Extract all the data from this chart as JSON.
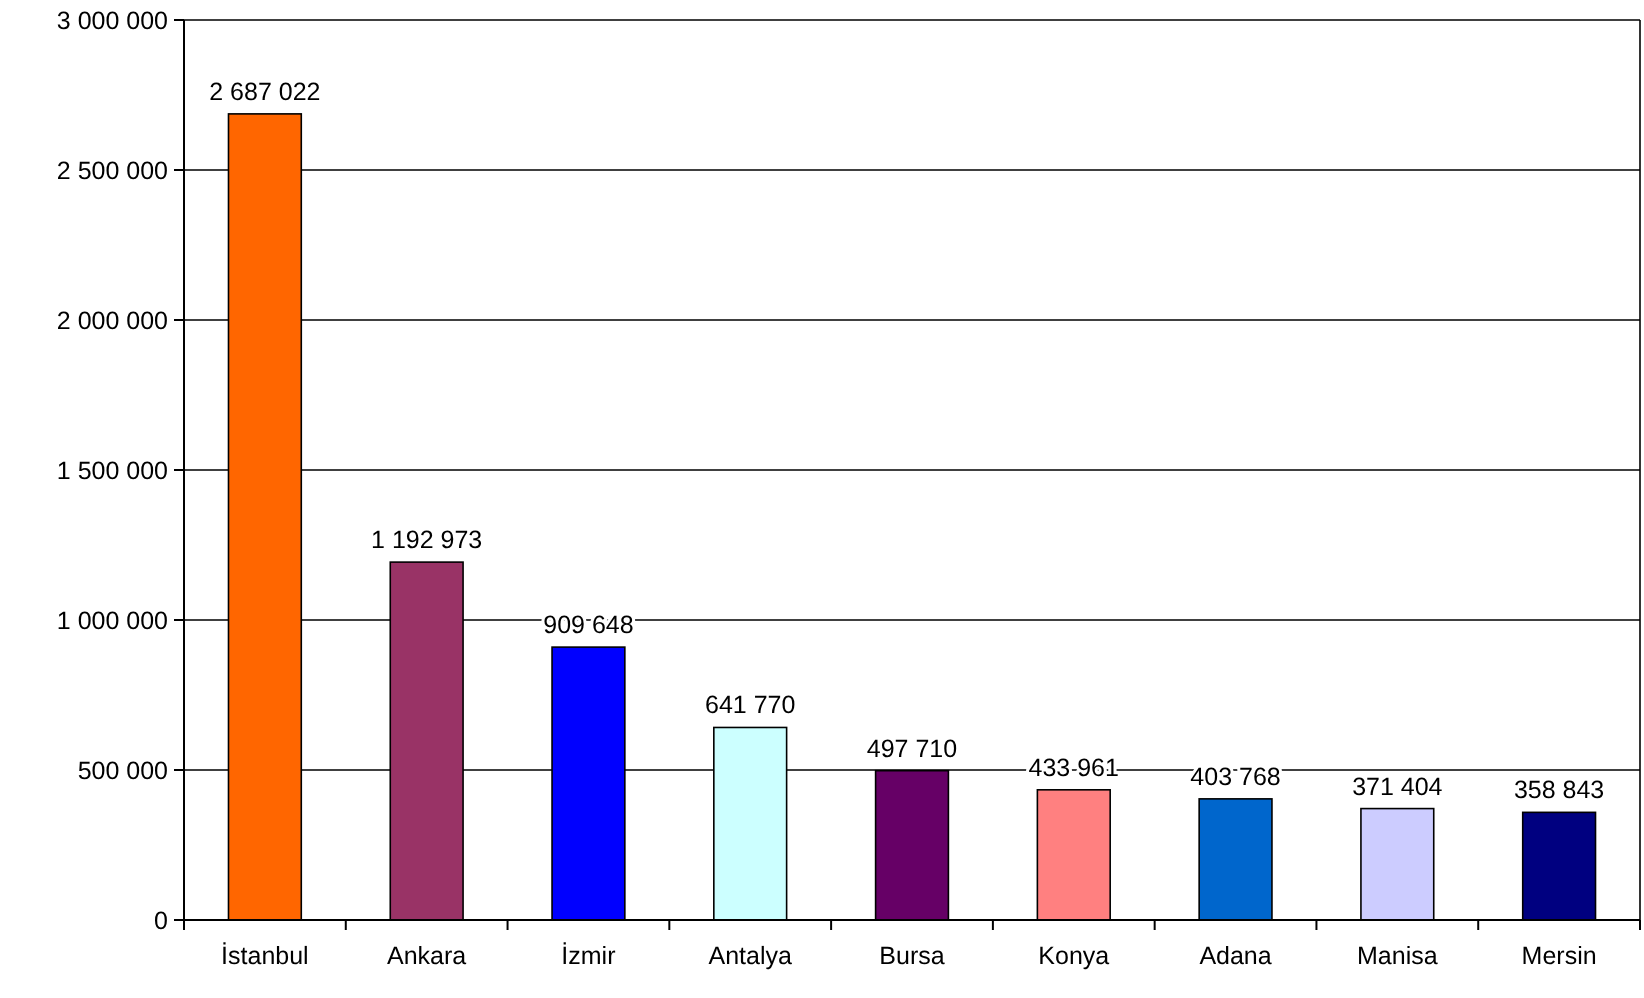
{
  "chart_data": {
    "type": "bar",
    "categories": [
      "İstanbul",
      "Ankara",
      "İzmir",
      "Antalya",
      "Bursa",
      "Konya",
      "Adana",
      "Manisa",
      "Mersin"
    ],
    "values": [
      2687022,
      1192973,
      909648,
      641770,
      497710,
      433961,
      403768,
      371404,
      358843
    ],
    "value_labels": [
      "2 687 022",
      "1 192 973",
      "909 648",
      "641 770",
      "497 710",
      "433 961",
      "403 768",
      "371 404",
      "358 843"
    ],
    "colors": [
      "#ff6600",
      "#993366",
      "#0000ff",
      "#ccffff",
      "#660066",
      "#ff8080",
      "#0066cc",
      "#ccccff",
      "#000080"
    ],
    "ylim": [
      0,
      3000000
    ],
    "yticks": [
      {
        "value": 0,
        "label": "0"
      },
      {
        "value": 500000,
        "label": "500 000"
      },
      {
        "value": 1000000,
        "label": "1 000 000"
      },
      {
        "value": 1500000,
        "label": "1 500 000"
      },
      {
        "value": 2000000,
        "label": "2 000 000"
      },
      {
        "value": 2500000,
        "label": "2 500 000"
      },
      {
        "value": 3000000,
        "label": "3 000 000"
      }
    ],
    "grid": "y"
  }
}
